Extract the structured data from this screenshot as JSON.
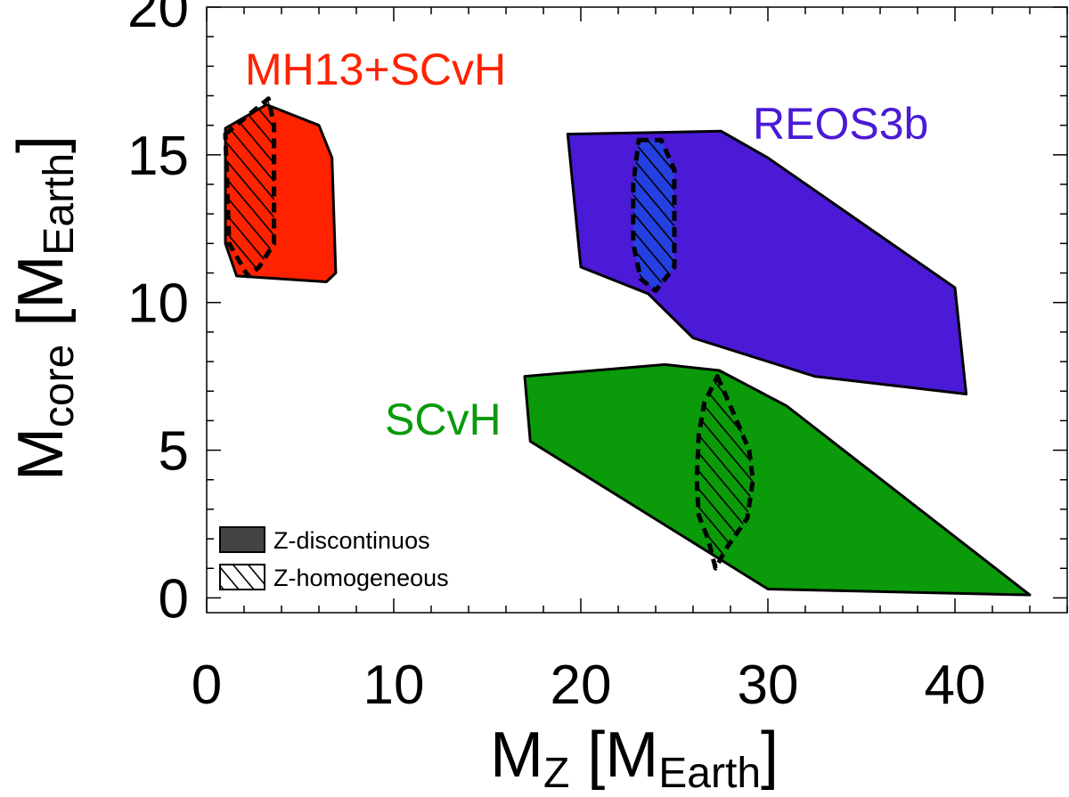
{
  "chart_data": {
    "type": "area",
    "title": "",
    "xlabel": {
      "main": "M",
      "sub": "Z",
      "unit_open": "[M",
      "unit_sub": "Earth",
      "unit_close": "]"
    },
    "ylabel": {
      "main": "M",
      "sub": "core",
      "unit_open": "[M",
      "unit_sub": "Earth",
      "unit_close": "]"
    },
    "xlim": [
      0,
      46
    ],
    "ylim": [
      -0.5,
      20
    ],
    "x_ticks": [
      0,
      10,
      20,
      30,
      40
    ],
    "y_ticks": [
      0,
      5,
      10,
      15,
      20
    ],
    "x_tick_labels": [
      "0",
      "10",
      "20",
      "30",
      "40"
    ],
    "y_tick_labels": [
      "0",
      "5",
      "10",
      "15",
      "20"
    ],
    "x_minor_step": 2,
    "y_minor_step": 1,
    "series": [
      {
        "name": "MH13+SCvH",
        "label": "MH13+SCvH",
        "color": "#ff2200",
        "region": [
          [
            1.0,
            15.9
          ],
          [
            3.2,
            16.7
          ],
          [
            6.0,
            16.0
          ],
          [
            6.7,
            14.9
          ],
          [
            6.9,
            11.0
          ],
          [
            6.4,
            10.7
          ],
          [
            1.6,
            10.9
          ],
          [
            1.0,
            12.0
          ]
        ],
        "homogeneous": [
          [
            1.0,
            15.7
          ],
          [
            3.3,
            16.9
          ],
          [
            3.6,
            16.0
          ],
          [
            3.6,
            12.0
          ],
          [
            2.8,
            11.2
          ],
          [
            2.2,
            10.9
          ],
          [
            1.2,
            12.0
          ]
        ]
      },
      {
        "name": "REOS3b",
        "label": "REOS3b",
        "color": "#4a1ad6",
        "region": [
          [
            19.3,
            15.7
          ],
          [
            27.5,
            15.8
          ],
          [
            30.0,
            14.9
          ],
          [
            40.0,
            10.5
          ],
          [
            40.6,
            6.9
          ],
          [
            32.5,
            7.5
          ],
          [
            26.0,
            8.8
          ],
          [
            23.6,
            10.3
          ],
          [
            20.0,
            11.2
          ]
        ],
        "homogeneous": [
          [
            23.1,
            15.5
          ],
          [
            24.3,
            15.5
          ],
          [
            25.0,
            14.5
          ],
          [
            25.0,
            11.2
          ],
          [
            24.0,
            10.4
          ],
          [
            23.2,
            10.8
          ],
          [
            22.8,
            12.0
          ],
          [
            22.8,
            14.0
          ]
        ],
        "homogeneous_fill": "#2540e0"
      },
      {
        "name": "SCvH",
        "label": "SCvH",
        "color": "#0a9a0a",
        "region": [
          [
            17.0,
            7.5
          ],
          [
            24.5,
            7.9
          ],
          [
            27.4,
            7.7
          ],
          [
            31.0,
            6.5
          ],
          [
            44.0,
            0.1
          ],
          [
            30.0,
            0.3
          ],
          [
            17.3,
            5.3
          ]
        ],
        "homogeneous": [
          [
            27.3,
            7.5
          ],
          [
            28.2,
            6.2
          ],
          [
            29.0,
            5.0
          ],
          [
            29.2,
            4.0
          ],
          [
            28.9,
            2.7
          ],
          [
            27.8,
            1.7
          ],
          [
            27.2,
            1.0
          ],
          [
            26.8,
            2.0
          ],
          [
            26.3,
            2.8
          ],
          [
            26.2,
            4.0
          ],
          [
            26.3,
            5.5
          ],
          [
            26.6,
            6.6
          ]
        ]
      }
    ],
    "legend": {
      "position": "bottom-left",
      "entries": [
        {
          "label": "Z-discontinuos",
          "style": "solid"
        },
        {
          "label": "Z-homogeneous",
          "style": "hatched"
        }
      ]
    }
  }
}
